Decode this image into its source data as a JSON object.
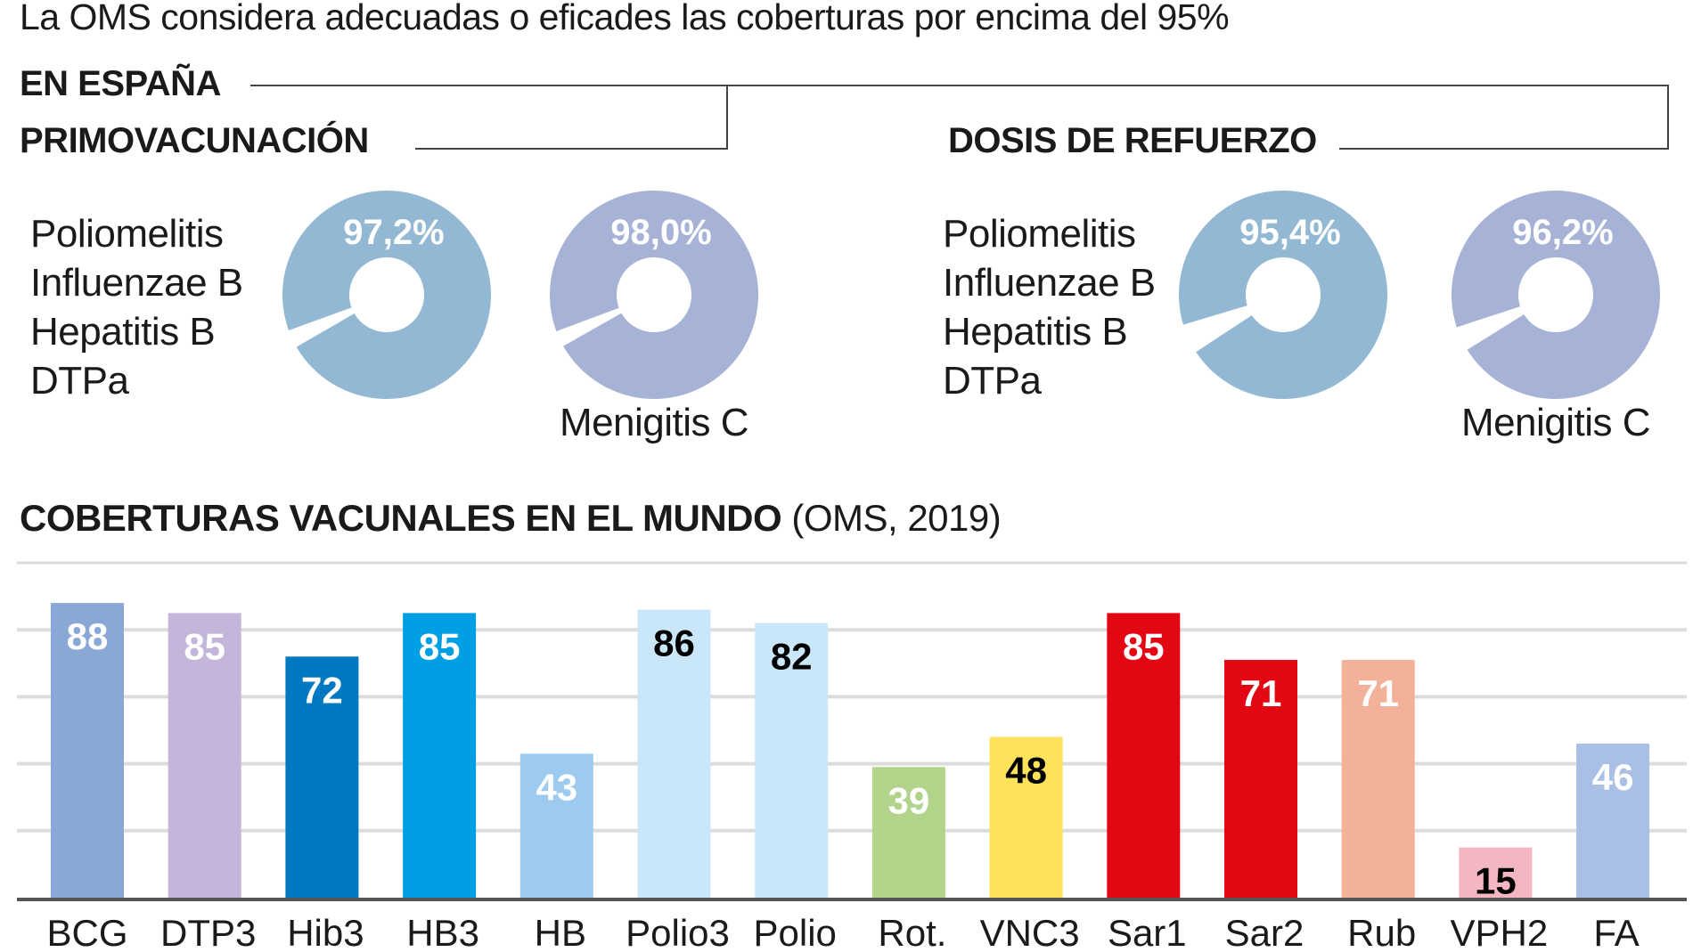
{
  "subtitle": "La OMS considera adecuadas o eficades las coberturas por encima del 95%",
  "spain_heading": "EN ESPAÑA",
  "primo": {
    "heading": "PRIMOVACUNACIÓN",
    "list": [
      "Poliomelitis",
      "Influenzae B",
      "Hepatitis B",
      "DTPa"
    ],
    "donuts": [
      {
        "value": 97.2,
        "label": "97,2%",
        "color": "#93b8d3"
      },
      {
        "value": 98.0,
        "label": "98,0%",
        "color": "#a6b3d6",
        "caption": "Menigitis C"
      }
    ]
  },
  "refuerzo": {
    "heading": "DOSIS DE REFUERZO",
    "list": [
      "Poliomelitis",
      "Influenzae B",
      "Hepatitis B",
      "DTPa"
    ],
    "donuts": [
      {
        "value": 95.4,
        "label": "95,4%",
        "color": "#93b8d3"
      },
      {
        "value": 96.2,
        "label": "96,2%",
        "color": "#a6b3d6",
        "caption": "Menigitis C"
      }
    ]
  },
  "world": {
    "title": "COBERTURAS VACUNALES EN EL MUNDO",
    "source": "(OMS, 2019)"
  },
  "chart_data": {
    "type": "bar",
    "title": "COBERTURAS VACUNALES EN EL MUNDO (OMS, 2019)",
    "categories": [
      "BCG",
      "DTP3",
      "Hib3",
      "HB3",
      "HB",
      "Polio3",
      "Polio",
      "Rot.",
      "VNC3",
      "Sar1",
      "Sar2",
      "Rub",
      "VPH2",
      "FA"
    ],
    "values": [
      88,
      85,
      72,
      85,
      43,
      86,
      82,
      39,
      48,
      85,
      71,
      71,
      15,
      46
    ],
    "colors": [
      "#8aa8d6",
      "#c3b6da",
      "#0079c2",
      "#009fe3",
      "#9ccbef",
      "#c9e7f8",
      "#c9e7f8",
      "#b2d38a",
      "#fde25a",
      "#e30613",
      "#e30613",
      "#f4b19a",
      "#f4b6c0",
      "#a9bfe6"
    ],
    "label_colors": [
      "#fff",
      "#fff",
      "#fff",
      "#fff",
      "#fff",
      "#000",
      "#000",
      "#fff",
      "#000",
      "#fff",
      "#fff",
      "#fff",
      "#000",
      "#fff"
    ],
    "ylim": [
      0,
      100
    ],
    "grid": true,
    "xlabel": "",
    "ylabel": ""
  }
}
